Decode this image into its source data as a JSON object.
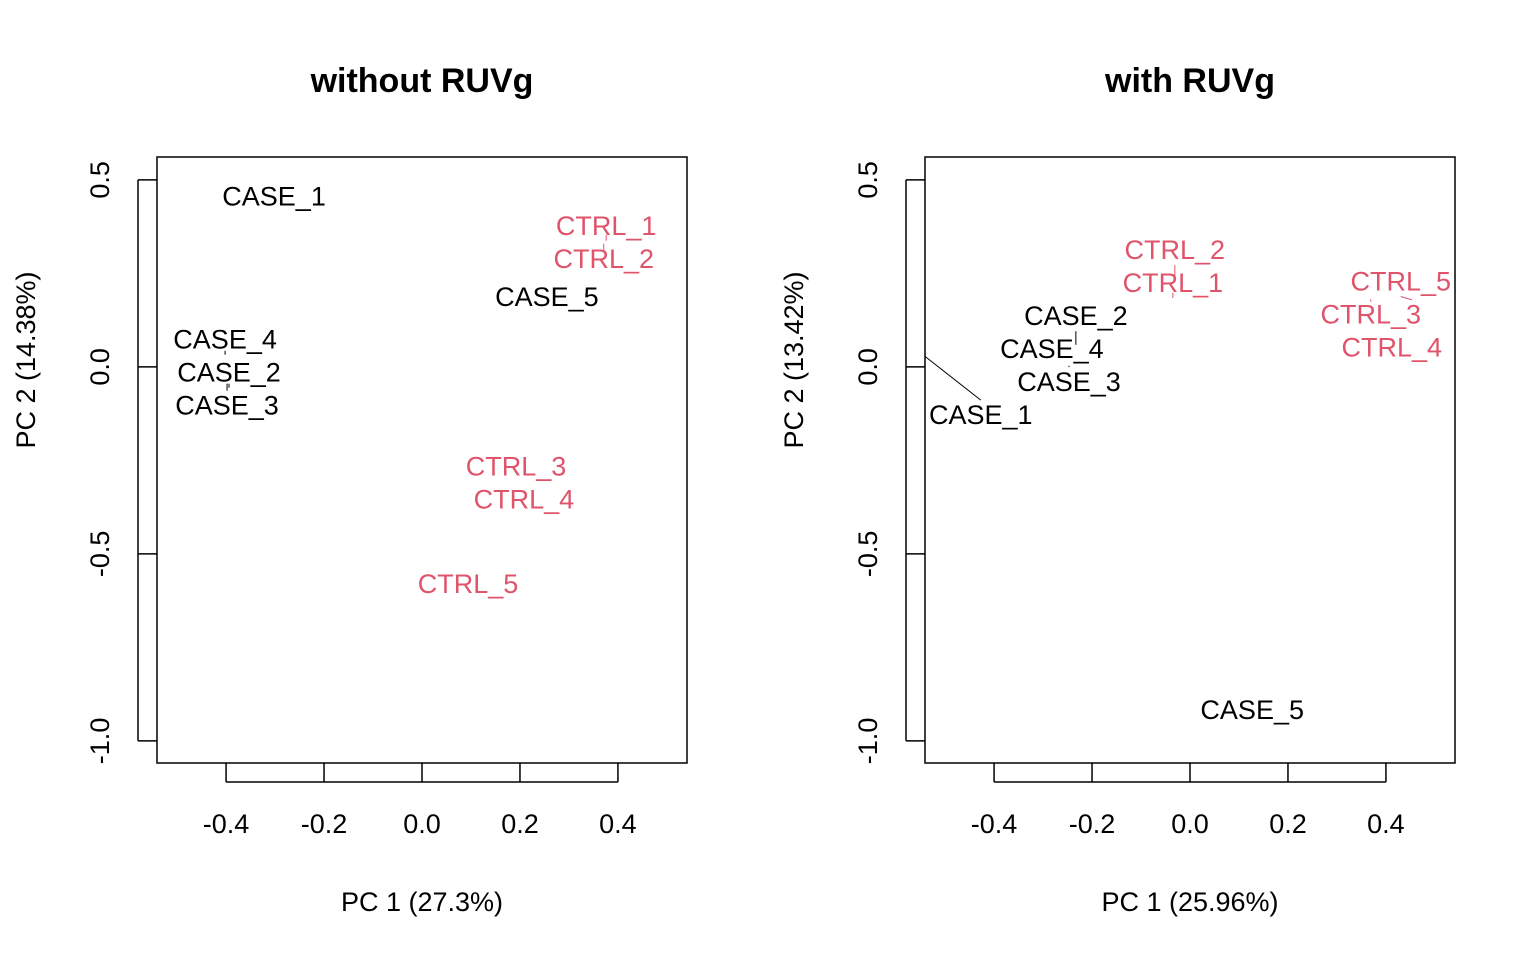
{
  "chart_data": [
    {
      "type": "scatter",
      "title": "without RUVg",
      "xlabel": "PC 1 (27.3%)",
      "ylabel": "PC 2 (14.38%)",
      "xlim": [
        -0.541,
        0.541
      ],
      "ylim": [
        -1.059,
        0.561
      ],
      "xticks": [
        -0.4,
        -0.2,
        0.0,
        0.2,
        0.4
      ],
      "xtick_labels": [
        "-0.4",
        "-0.2",
        "0.0",
        "0.2",
        "0.4"
      ],
      "yticks": [
        0.5,
        0.0,
        -0.5,
        -1.0
      ],
      "ytick_labels": [
        "0.5",
        "0.0",
        "-0.5",
        "-1.0"
      ],
      "points": [
        {
          "label": "CASE_1",
          "x": -0.302,
          "y": 0.455,
          "group": "case"
        },
        {
          "label": "CASE_2",
          "x": -0.394,
          "y": -0.045,
          "group": "case"
        },
        {
          "label": "CASE_3",
          "x": -0.398,
          "y": -0.045,
          "group": "case"
        },
        {
          "label": "CASE_4",
          "x": -0.402,
          "y": 0.043,
          "group": "case"
        },
        {
          "label": "CASE_5",
          "x": 0.255,
          "y": 0.187,
          "group": "case"
        },
        {
          "label": "CTRL_1",
          "x": 0.376,
          "y": 0.353,
          "group": "ctrl"
        },
        {
          "label": "CTRL_2",
          "x": 0.371,
          "y": 0.313,
          "group": "ctrl"
        },
        {
          "label": "CTRL_3",
          "x": 0.192,
          "y": -0.275,
          "group": "ctrl"
        },
        {
          "label": "CTRL_4",
          "x": 0.208,
          "y": -0.345,
          "group": "ctrl"
        },
        {
          "label": "CTRL_5",
          "x": 0.094,
          "y": -0.58,
          "group": "ctrl"
        }
      ]
    },
    {
      "type": "scatter",
      "title": "with RUVg",
      "xlabel": "PC 1 (25.96%)",
      "ylabel": "PC 2 (13.42%)",
      "xlim": [
        -0.541,
        0.541
      ],
      "ylim": [
        -1.059,
        0.561
      ],
      "xticks": [
        -0.4,
        -0.2,
        0.0,
        0.2,
        0.4
      ],
      "xtick_labels": [
        "-0.4",
        "-0.2",
        "0.0",
        "0.2",
        "0.4"
      ],
      "yticks": [
        0.5,
        0.0,
        -0.5,
        -1.0
      ],
      "ytick_labels": [
        "0.5",
        "0.0",
        "-0.5",
        "-1.0"
      ],
      "points": [
        {
          "label": "CASE_1",
          "x": -0.54,
          "y": 0.027,
          "group": "case"
        },
        {
          "label": "CASE_2",
          "x": -0.233,
          "y": 0.059,
          "group": "case"
        },
        {
          "label": "CASE_3",
          "x": -0.247,
          "y": 0.003,
          "group": "case"
        },
        {
          "label": "CASE_4",
          "x": -0.282,
          "y": 0.032,
          "group": "case"
        },
        {
          "label": "CASE_5",
          "x": 0.127,
          "y": -0.917,
          "group": "case"
        },
        {
          "label": "CTRL_1",
          "x": -0.035,
          "y": 0.198,
          "group": "ctrl"
        },
        {
          "label": "CTRL_2",
          "x": -0.031,
          "y": 0.23,
          "group": "ctrl"
        },
        {
          "label": "CTRL_3",
          "x": 0.369,
          "y": 0.174,
          "group": "ctrl"
        },
        {
          "label": "CTRL_4",
          "x": 0.412,
          "y": 0.067,
          "group": "ctrl"
        },
        {
          "label": "CTRL_5",
          "x": 0.453,
          "y": 0.179,
          "group": "ctrl"
        }
      ]
    }
  ],
  "colors": {
    "case": "#000000",
    "ctrl": "#DF536B"
  }
}
